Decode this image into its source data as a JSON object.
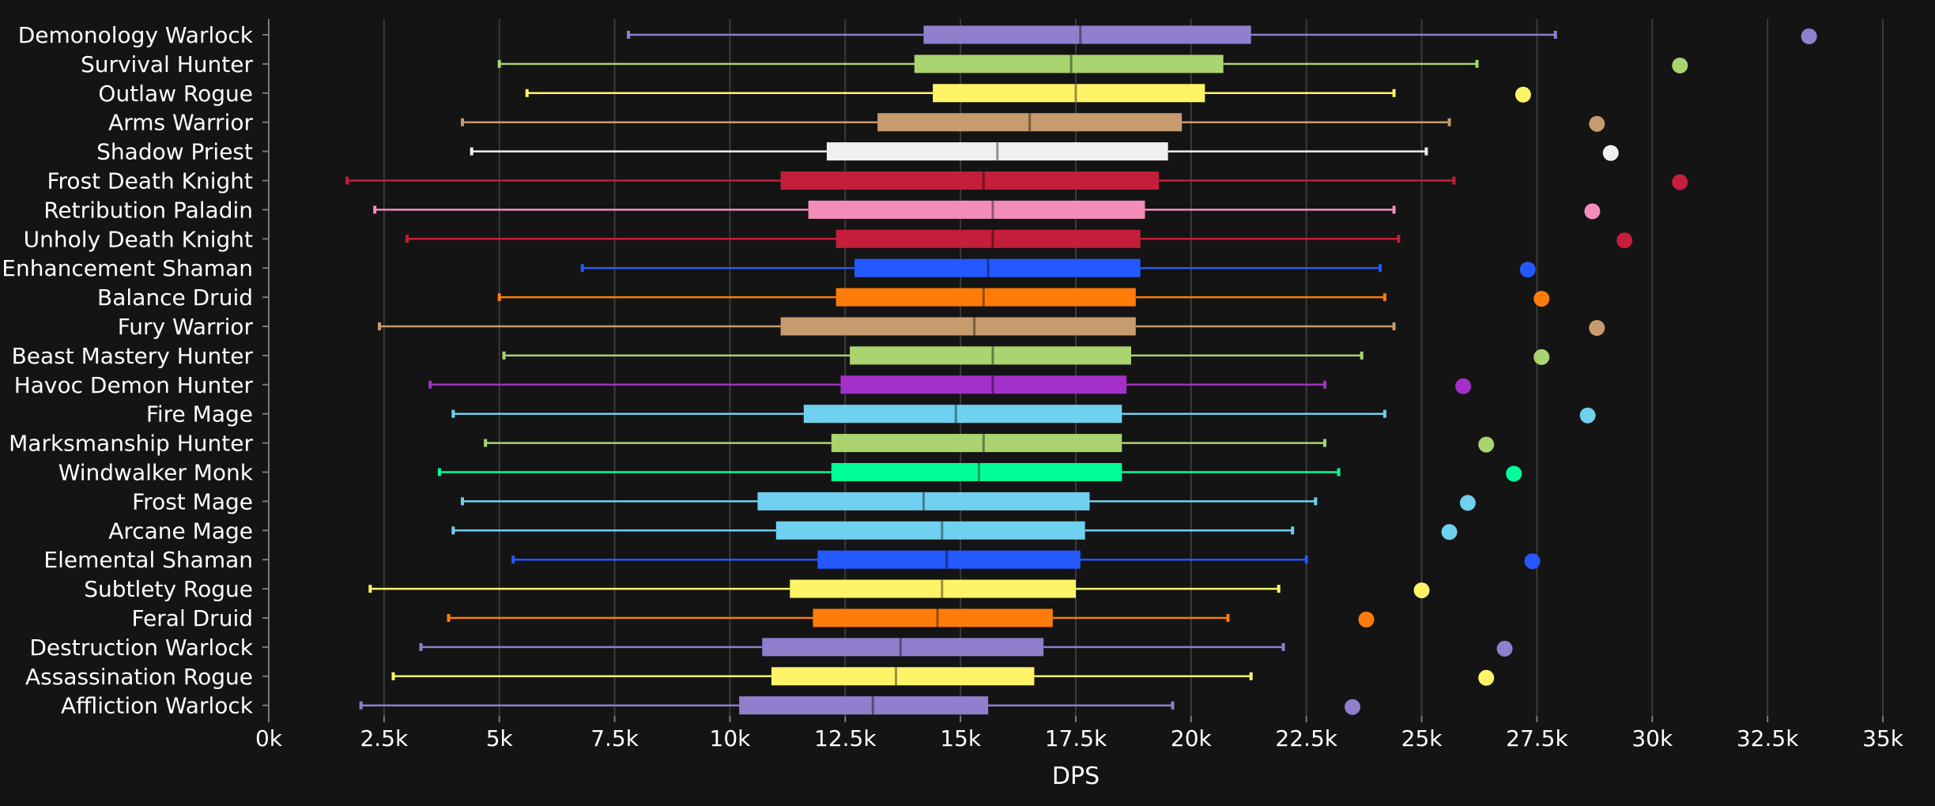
{
  "chart_data": {
    "type": "box",
    "xlabel": "DPS",
    "xlim": [
      0,
      35000
    ],
    "xticks": [
      0,
      2500,
      5000,
      7500,
      10000,
      12500,
      15000,
      17500,
      20000,
      22500,
      25000,
      27500,
      30000,
      32500,
      35000
    ],
    "xtick_labels": [
      "0k",
      "2.5k",
      "5k",
      "7.5k",
      "10k",
      "12.5k",
      "15k",
      "17.5k",
      "20k",
      "22.5k",
      "25k",
      "27.5k",
      "30k",
      "32.5k",
      "35k"
    ],
    "grid": "vertical",
    "series": [
      {
        "name": "Demonology Warlock",
        "color": "#8f7fcc",
        "min": 7800,
        "q1": 14200,
        "median": 17600,
        "q3": 21300,
        "max": 27900,
        "outlier": 33400
      },
      {
        "name": "Survival Hunter",
        "color": "#a9d46f",
        "min": 5000,
        "q1": 14000,
        "median": 17400,
        "q3": 20700,
        "max": 26200,
        "outlier": 30600
      },
      {
        "name": "Outlaw Rogue",
        "color": "#fff468",
        "min": 5600,
        "q1": 14400,
        "median": 17500,
        "q3": 20300,
        "max": 24400,
        "outlier": 27200
      },
      {
        "name": "Arms Warrior",
        "color": "#c69b6d",
        "min": 4200,
        "q1": 13200,
        "median": 16500,
        "q3": 19800,
        "max": 25600,
        "outlier": 28800
      },
      {
        "name": "Shadow Priest",
        "color": "#f0f0f0",
        "min": 4400,
        "q1": 12100,
        "median": 15800,
        "q3": 19500,
        "max": 25100,
        "outlier": 29100
      },
      {
        "name": "Frost Death Knight",
        "color": "#c41e3a",
        "min": 1700,
        "q1": 11100,
        "median": 15500,
        "q3": 19300,
        "max": 25700,
        "outlier": 30600
      },
      {
        "name": "Retribution Paladin",
        "color": "#f48cba",
        "min": 2300,
        "q1": 11700,
        "median": 15700,
        "q3": 19000,
        "max": 24400,
        "outlier": 28700
      },
      {
        "name": "Unholy Death Knight",
        "color": "#c41e3a",
        "min": 3000,
        "q1": 12300,
        "median": 15700,
        "q3": 18900,
        "max": 24500,
        "outlier": 29400
      },
      {
        "name": "Enhancement Shaman",
        "color": "#2459ff",
        "min": 6800,
        "q1": 12700,
        "median": 15600,
        "q3": 18900,
        "max": 24100,
        "outlier": 27300
      },
      {
        "name": "Balance Druid",
        "color": "#ff7c0a",
        "min": 5000,
        "q1": 12300,
        "median": 15500,
        "q3": 18800,
        "max": 24200,
        "outlier": 27600
      },
      {
        "name": "Fury Warrior",
        "color": "#c69b6d",
        "min": 2400,
        "q1": 11100,
        "median": 15300,
        "q3": 18800,
        "max": 24400,
        "outlier": 28800
      },
      {
        "name": "Beast Mastery Hunter",
        "color": "#a9d46f",
        "min": 5100,
        "q1": 12600,
        "median": 15700,
        "q3": 18700,
        "max": 23700,
        "outlier": 27600
      },
      {
        "name": "Havoc Demon Hunter",
        "color": "#a330c9",
        "min": 3500,
        "q1": 12400,
        "median": 15700,
        "q3": 18600,
        "max": 22900,
        "outlier": 25900
      },
      {
        "name": "Fire Mage",
        "color": "#6fd0f0",
        "min": 4000,
        "q1": 11600,
        "median": 14900,
        "q3": 18500,
        "max": 24200,
        "outlier": 28600
      },
      {
        "name": "Marksmanship Hunter",
        "color": "#a9d46f",
        "min": 4700,
        "q1": 12200,
        "median": 15500,
        "q3": 18500,
        "max": 22900,
        "outlier": 26400
      },
      {
        "name": "Windwalker Monk",
        "color": "#00ff98",
        "min": 3700,
        "q1": 12200,
        "median": 15400,
        "q3": 18500,
        "max": 23200,
        "outlier": 27000
      },
      {
        "name": "Frost Mage",
        "color": "#6fd0f0",
        "min": 4200,
        "q1": 10600,
        "median": 14200,
        "q3": 17800,
        "max": 22700,
        "outlier": 26000
      },
      {
        "name": "Arcane Mage",
        "color": "#6fd0f0",
        "min": 4000,
        "q1": 11000,
        "median": 14600,
        "q3": 17700,
        "max": 22200,
        "outlier": 25600
      },
      {
        "name": "Elemental Shaman",
        "color": "#2459ff",
        "min": 5300,
        "q1": 11900,
        "median": 14700,
        "q3": 17600,
        "max": 22500,
        "outlier": 27400
      },
      {
        "name": "Subtlety Rogue",
        "color": "#fff468",
        "min": 2200,
        "q1": 11300,
        "median": 14600,
        "q3": 17500,
        "max": 21900,
        "outlier": 25000
      },
      {
        "name": "Feral Druid",
        "color": "#ff7c0a",
        "min": 3900,
        "q1": 11800,
        "median": 14500,
        "q3": 17000,
        "max": 20800,
        "outlier": 23800
      },
      {
        "name": "Destruction Warlock",
        "color": "#8f7fcc",
        "min": 3300,
        "q1": 10700,
        "median": 13700,
        "q3": 16800,
        "max": 22000,
        "outlier": 26800
      },
      {
        "name": "Assassination Rogue",
        "color": "#fff468",
        "min": 2700,
        "q1": 10900,
        "median": 13600,
        "q3": 16600,
        "max": 21300,
        "outlier": 26400
      },
      {
        "name": "Affliction Warlock",
        "color": "#8f7fcc",
        "min": 2000,
        "q1": 10200,
        "median": 13100,
        "q3": 15600,
        "max": 19600,
        "outlier": 23500
      }
    ]
  }
}
